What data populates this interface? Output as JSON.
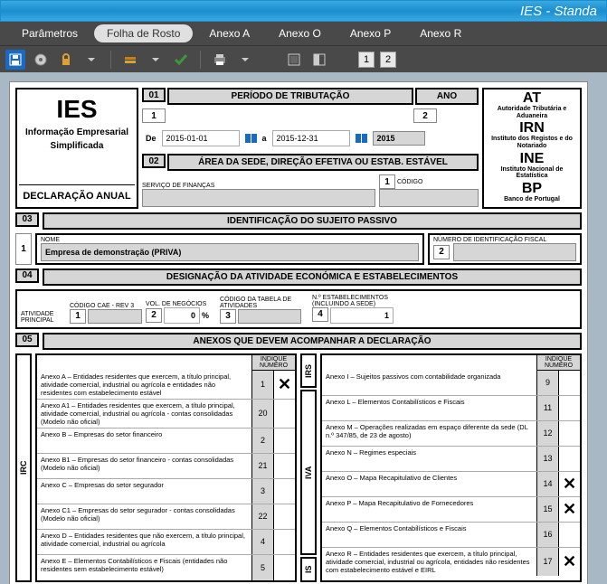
{
  "window": {
    "title": "IES - Standa"
  },
  "menu": {
    "items": [
      "Parâmetros",
      "Folha de Rosto",
      "Anexo A",
      "Anexo O",
      "Anexo P",
      "Anexo R"
    ],
    "active_index": 1
  },
  "toolbar": {
    "pages": [
      "1",
      "2"
    ]
  },
  "ies_block": {
    "title": "IES",
    "subtitle1": "Informação Empresarial",
    "subtitle2": "Simplificada",
    "declaration": "DECLARAÇÃO ANUAL"
  },
  "auth_block": {
    "at": "AT",
    "at_sub": "Autoridade Tributária e Aduaneira",
    "irn": "IRN",
    "irn_sub": "Instituto dos Registos e do Notariado",
    "ine": "INE",
    "ine_sub": "Instituto Nacional de Estatística",
    "bp": "BP",
    "bp_sub": "Banco de Portugal"
  },
  "section01": {
    "num": "01",
    "title": "PERÍODO DE TRIBUTAÇÃO",
    "ano_label": "ANO",
    "box1": "1",
    "box2": "2",
    "de_label": "De",
    "a_label": "a",
    "date_from": "2015-01-01",
    "date_to": "2015-12-31",
    "year": "2015"
  },
  "section02": {
    "num": "02",
    "title": "ÁREA DA SEDE, DIREÇÃO EFETIVA OU ESTAB. ESTÁVEL",
    "servico_label": "SERVIÇO DE FINANÇAS",
    "codigo_label": "CÓDIGO",
    "box1": "1"
  },
  "section03": {
    "num": "03",
    "title": "IDENTIFICAÇÃO DO SUJEITO PASSIVO",
    "box1": "1",
    "nome_label": "NOME",
    "nome_value": "Empresa de demonstração (PRIVA)",
    "nif_label": "NÚMERO DE IDENTIFICAÇÃO FISCAL",
    "box2": "2"
  },
  "section04": {
    "num": "04",
    "title": "DESIGNAÇÃO DA ATIVIDADE ECONÓMICA E ESTABELECIMENTOS",
    "atividade_label": "ATIVIDADE PRINCIPAL",
    "cae_label": "CÓDIGO CAE - REV 3",
    "vol_label": "VOL. DE NEGÓCIOS",
    "tabela_label": "CÓDIGO DA TABELA DE ATIVIDADES",
    "estab_label": "N.º ESTABELECIMENTOS (incluindo a sede)",
    "box1": "1",
    "box2": "2",
    "box3": "3",
    "box4": "4",
    "vol_value": "0",
    "pct": "%",
    "estab_value": "1"
  },
  "section05": {
    "num": "05",
    "title": "ANEXOS QUE DEVEM ACOMPANHAR A DECLARAÇÃO",
    "indique_label": "INDIQUE NÚMERO",
    "vert_labels": {
      "irc": "IRC",
      "irs": "IRS",
      "iva": "IVA",
      "is": "IS"
    },
    "left": [
      {
        "text": "Anexo A – Entidades residentes que exercem, a título principal, atividade comercial, industrial ou agrícola e entidades não residentes com estabelecimento estável",
        "num": "1",
        "checked": true
      },
      {
        "text": "Anexo A1 – Entidades residentes que exercem, a título principal, atividade comercial, industrial ou agrícola - contas consolidadas (Modelo não oficial)",
        "num": "20",
        "checked": false
      },
      {
        "text": "Anexo B – Empresas do setor financeiro",
        "num": "2",
        "checked": false
      },
      {
        "text": "Anexo B1 – Empresas do setor financeiro - contas consolidadas (Modelo não oficial)",
        "num": "21",
        "checked": false
      },
      {
        "text": "Anexo C – Empresas do setor segurador",
        "num": "3",
        "checked": false
      },
      {
        "text": "Anexo C1 – Empresas do setor segurador - contas consolidadas (Modelo não oficial)",
        "num": "22",
        "checked": false
      },
      {
        "text": "Anexo D – Entidades residentes que não exercem, a título principal, atividade comercial, industrial ou agrícola",
        "num": "4",
        "checked": false
      },
      {
        "text": "Anexo E – Elementos Contabilísticos e Fiscais (entidades não residentes sem estabelecimento estável)",
        "num": "5",
        "checked": false
      }
    ],
    "right": [
      {
        "text": "Anexo I – Sujeitos passivos com contabilidade organizada",
        "num": "9",
        "checked": false
      },
      {
        "text": "Anexo L – Elementos Contabilísticos e Fiscais",
        "num": "11",
        "checked": false
      },
      {
        "text": "Anexo M – Operações realizadas em espaço diferente da sede (DL n.º 347/85, de 23 de agosto)",
        "num": "12",
        "checked": false
      },
      {
        "text": "Anexo N – Regimes especiais",
        "num": "13",
        "checked": false
      },
      {
        "text": "Anexo O – Mapa Recapitulativo de Clientes",
        "num": "14",
        "checked": true
      },
      {
        "text": "Anexo P – Mapa Recapitulativo de Fornecedores",
        "num": "15",
        "checked": true
      },
      {
        "text": "Anexo Q – Elementos Contabilísticos e Fiscais",
        "num": "16",
        "checked": false
      },
      {
        "text": "Anexo R – Entidades residentes que exercem, a título principal, atividade comercial, industrial ou agrícola, entidades não residentes com estabelecimento estável e EIRL",
        "num": "17",
        "checked": true
      }
    ]
  },
  "colors": {
    "title_bar": "#1a8ed0",
    "menu_bg": "#494949",
    "doc_bg": "#a8b8c4",
    "gray_field": "#d6d6d6"
  }
}
